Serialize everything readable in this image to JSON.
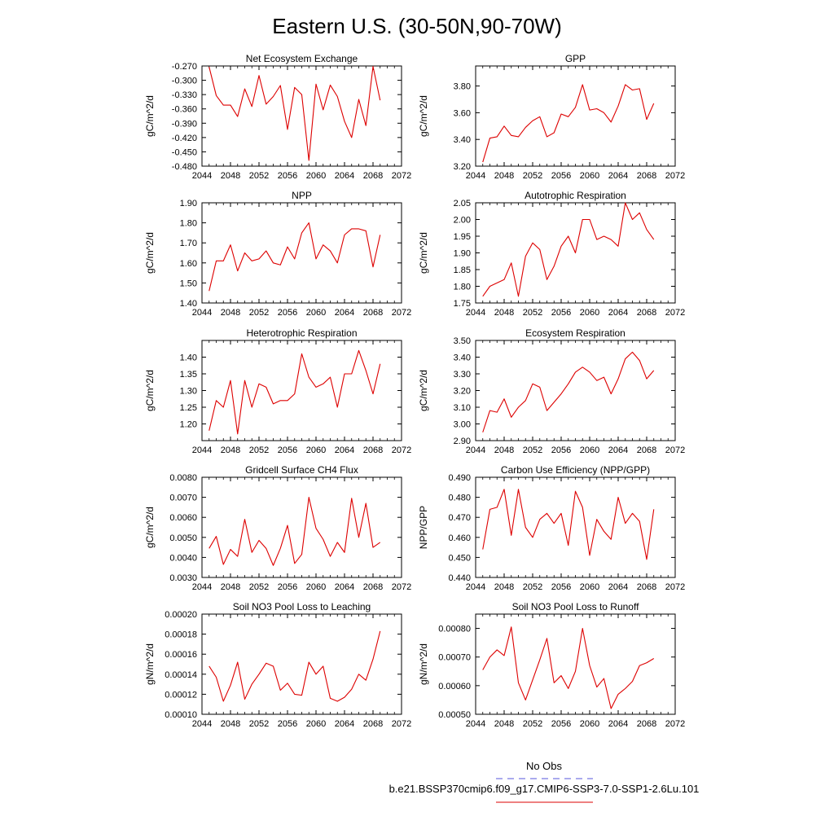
{
  "figure": {
    "title": "Eastern U.S. (30-50N,90-70W)",
    "legend": {
      "obs_label": "No Obs",
      "obs_color": "#5555dd",
      "case_label": "b.e21.BSSP370cmip6.f09_g17.CMIP6-SSP3-7.0-SSP1-2.6Lu.101",
      "case_color": "#dd0000"
    }
  },
  "chart_data": [
    {
      "type": "line",
      "title": "Net Ecosystem Exchange",
      "xlabel": "",
      "ylabel": "gC/m^2/d",
      "xlim": [
        2044,
        2072
      ],
      "xticks": [
        "2044",
        "2048",
        "2052",
        "2056",
        "2060",
        "2064",
        "2068",
        "2072"
      ],
      "ylim": [
        -0.48,
        -0.27
      ],
      "yticks": [
        "-0.270",
        "-0.300",
        "-0.330",
        "-0.360",
        "-0.390",
        "-0.420",
        "-0.450",
        "-0.480"
      ],
      "yticks_v": [
        -0.27,
        -0.3,
        -0.33,
        -0.36,
        -0.39,
        -0.42,
        -0.45,
        -0.48
      ],
      "x": [
        2045,
        2046,
        2047,
        2048,
        2049,
        2050,
        2051,
        2052,
        2053,
        2054,
        2055,
        2056,
        2057,
        2058,
        2059,
        2060,
        2061,
        2062,
        2063,
        2064,
        2065,
        2066,
        2067,
        2068,
        2069
      ],
      "series": [
        {
          "color": "#dd0000",
          "values": [
            -0.272,
            -0.332,
            -0.352,
            -0.352,
            -0.376,
            -0.318,
            -0.355,
            -0.29,
            -0.35,
            -0.334,
            -0.311,
            -0.403,
            -0.315,
            -0.33,
            -0.468,
            -0.308,
            -0.362,
            -0.31,
            -0.334,
            -0.386,
            -0.42,
            -0.34,
            -0.395,
            -0.271,
            -0.342
          ]
        }
      ]
    },
    {
      "type": "line",
      "title": "GPP",
      "xlabel": "",
      "ylabel": "gC/m^2/d",
      "xlim": [
        2044,
        2072
      ],
      "xticks": [
        "2044",
        "2048",
        "2052",
        "2056",
        "2060",
        "2064",
        "2068",
        "2072"
      ],
      "ylim": [
        3.2,
        3.95
      ],
      "yticks": [
        "3.20",
        "3.40",
        "3.60",
        "3.80"
      ],
      "yticks_v": [
        3.2,
        3.4,
        3.6,
        3.8
      ],
      "x": [
        2045,
        2046,
        2047,
        2048,
        2049,
        2050,
        2051,
        2052,
        2053,
        2054,
        2055,
        2056,
        2057,
        2058,
        2059,
        2060,
        2061,
        2062,
        2063,
        2064,
        2065,
        2066,
        2067,
        2068,
        2069
      ],
      "series": [
        {
          "color": "#dd0000",
          "values": [
            3.23,
            3.41,
            3.42,
            3.5,
            3.43,
            3.42,
            3.49,
            3.54,
            3.57,
            3.42,
            3.45,
            3.59,
            3.57,
            3.64,
            3.81,
            3.62,
            3.63,
            3.6,
            3.53,
            3.65,
            3.81,
            3.77,
            3.78,
            3.55,
            3.67
          ]
        }
      ]
    },
    {
      "type": "line",
      "title": "NPP",
      "xlabel": "",
      "ylabel": "gC/m^2/d",
      "xlim": [
        2044,
        2072
      ],
      "xticks": [
        "2044",
        "2048",
        "2052",
        "2056",
        "2060",
        "2064",
        "2068",
        "2072"
      ],
      "ylim": [
        1.4,
        1.9
      ],
      "yticks": [
        "1.40",
        "1.50",
        "1.60",
        "1.70",
        "1.80",
        "1.90"
      ],
      "yticks_v": [
        1.4,
        1.5,
        1.6,
        1.7,
        1.8,
        1.9
      ],
      "x": [
        2045,
        2046,
        2047,
        2048,
        2049,
        2050,
        2051,
        2052,
        2053,
        2054,
        2055,
        2056,
        2057,
        2058,
        2059,
        2060,
        2061,
        2062,
        2063,
        2064,
        2065,
        2066,
        2067,
        2068,
        2069
      ],
      "series": [
        {
          "color": "#dd0000",
          "values": [
            1.46,
            1.61,
            1.61,
            1.69,
            1.56,
            1.65,
            1.61,
            1.62,
            1.66,
            1.6,
            1.59,
            1.68,
            1.62,
            1.75,
            1.8,
            1.62,
            1.69,
            1.66,
            1.6,
            1.74,
            1.77,
            1.77,
            1.76,
            1.58,
            1.74
          ]
        }
      ]
    },
    {
      "type": "line",
      "title": "Autotrophic Respiration",
      "xlabel": "",
      "ylabel": "gC/m^2/d",
      "xlim": [
        2044,
        2072
      ],
      "xticks": [
        "2044",
        "2048",
        "2052",
        "2056",
        "2060",
        "2064",
        "2068",
        "2072"
      ],
      "ylim": [
        1.75,
        2.05
      ],
      "yticks": [
        "1.75",
        "1.80",
        "1.85",
        "1.90",
        "1.95",
        "2.00",
        "2.05"
      ],
      "yticks_v": [
        1.75,
        1.8,
        1.85,
        1.9,
        1.95,
        2.0,
        2.05
      ],
      "x": [
        2045,
        2046,
        2047,
        2048,
        2049,
        2050,
        2051,
        2052,
        2053,
        2054,
        2055,
        2056,
        2057,
        2058,
        2059,
        2060,
        2061,
        2062,
        2063,
        2064,
        2065,
        2066,
        2067,
        2068,
        2069
      ],
      "series": [
        {
          "color": "#dd0000",
          "values": [
            1.77,
            1.8,
            1.81,
            1.82,
            1.87,
            1.77,
            1.89,
            1.93,
            1.91,
            1.82,
            1.86,
            1.92,
            1.95,
            1.9,
            2.0,
            2.0,
            1.94,
            1.95,
            1.94,
            1.92,
            2.05,
            2.0,
            2.02,
            1.97,
            1.94
          ]
        }
      ]
    },
    {
      "type": "line",
      "title": "Heterotrophic Respiration",
      "xlabel": "",
      "ylabel": "gC/m^2/d",
      "xlim": [
        2044,
        2072
      ],
      "xticks": [
        "2044",
        "2048",
        "2052",
        "2056",
        "2060",
        "2064",
        "2068",
        "2072"
      ],
      "ylim": [
        1.15,
        1.45
      ],
      "yticks": [
        "1.20",
        "1.25",
        "1.30",
        "1.35",
        "1.40"
      ],
      "yticks_v": [
        1.2,
        1.25,
        1.3,
        1.35,
        1.4
      ],
      "x": [
        2045,
        2046,
        2047,
        2048,
        2049,
        2050,
        2051,
        2052,
        2053,
        2054,
        2055,
        2056,
        2057,
        2058,
        2059,
        2060,
        2061,
        2062,
        2063,
        2064,
        2065,
        2066,
        2067,
        2068,
        2069
      ],
      "series": [
        {
          "color": "#dd0000",
          "values": [
            1.18,
            1.27,
            1.25,
            1.33,
            1.17,
            1.33,
            1.25,
            1.32,
            1.31,
            1.26,
            1.27,
            1.27,
            1.29,
            1.41,
            1.34,
            1.31,
            1.32,
            1.34,
            1.25,
            1.35,
            1.35,
            1.42,
            1.36,
            1.29,
            1.38
          ]
        }
      ]
    },
    {
      "type": "line",
      "title": "Ecosystem Respiration",
      "xlabel": "",
      "ylabel": "gC/m^2/d",
      "xlim": [
        2044,
        2072
      ],
      "xticks": [
        "2044",
        "2048",
        "2052",
        "2056",
        "2060",
        "2064",
        "2068",
        "2072"
      ],
      "ylim": [
        2.9,
        3.5
      ],
      "yticks": [
        "2.90",
        "3.00",
        "3.10",
        "3.20",
        "3.30",
        "3.40",
        "3.50"
      ],
      "yticks_v": [
        2.9,
        3.0,
        3.1,
        3.2,
        3.3,
        3.4,
        3.5
      ],
      "x": [
        2045,
        2046,
        2047,
        2048,
        2049,
        2050,
        2051,
        2052,
        2053,
        2054,
        2055,
        2056,
        2057,
        2058,
        2059,
        2060,
        2061,
        2062,
        2063,
        2064,
        2065,
        2066,
        2067,
        2068,
        2069
      ],
      "series": [
        {
          "color": "#dd0000",
          "values": [
            2.95,
            3.08,
            3.07,
            3.15,
            3.04,
            3.1,
            3.14,
            3.24,
            3.22,
            3.08,
            3.13,
            3.18,
            3.24,
            3.31,
            3.34,
            3.31,
            3.26,
            3.28,
            3.18,
            3.27,
            3.39,
            3.43,
            3.38,
            3.27,
            3.32
          ]
        }
      ]
    },
    {
      "type": "line",
      "title": "Gridcell Surface CH4 Flux",
      "xlabel": "",
      "ylabel": "gC/m^2/d",
      "xlim": [
        2044,
        2072
      ],
      "xticks": [
        "2044",
        "2048",
        "2052",
        "2056",
        "2060",
        "2064",
        "2068",
        "2072"
      ],
      "ylim": [
        0.003,
        0.008
      ],
      "yticks": [
        "0.0030",
        "0.0040",
        "0.0050",
        "0.0060",
        "0.0070",
        "0.0080"
      ],
      "yticks_v": [
        0.003,
        0.004,
        0.005,
        0.006,
        0.007,
        0.008
      ],
      "x": [
        2045,
        2046,
        2047,
        2048,
        2049,
        2050,
        2051,
        2052,
        2053,
        2054,
        2055,
        2056,
        2057,
        2058,
        2059,
        2060,
        2061,
        2062,
        2063,
        2064,
        2065,
        2066,
        2067,
        2068,
        2069
      ],
      "series": [
        {
          "color": "#dd0000",
          "values": [
            0.00445,
            0.00505,
            0.00365,
            0.0044,
            0.00405,
            0.0059,
            0.00425,
            0.00485,
            0.00445,
            0.0036,
            0.00445,
            0.0056,
            0.0037,
            0.00415,
            0.007,
            0.00545,
            0.0049,
            0.00405,
            0.00475,
            0.00425,
            0.00695,
            0.005,
            0.0067,
            0.0045,
            0.00475
          ]
        }
      ]
    },
    {
      "type": "line",
      "title": "Carbon Use Efficiency (NPP/GPP)",
      "xlabel": "",
      "ylabel": "NPP/GPP",
      "xlim": [
        2044,
        2072
      ],
      "xticks": [
        "2044",
        "2048",
        "2052",
        "2056",
        "2060",
        "2064",
        "2068",
        "2072"
      ],
      "ylim": [
        0.44,
        0.49
      ],
      "yticks": [
        "0.440",
        "0.450",
        "0.460",
        "0.470",
        "0.480",
        "0.490"
      ],
      "yticks_v": [
        0.44,
        0.45,
        0.46,
        0.47,
        0.48,
        0.49
      ],
      "x": [
        2045,
        2046,
        2047,
        2048,
        2049,
        2050,
        2051,
        2052,
        2053,
        2054,
        2055,
        2056,
        2057,
        2058,
        2059,
        2060,
        2061,
        2062,
        2063,
        2064,
        2065,
        2066,
        2067,
        2068,
        2069
      ],
      "series": [
        {
          "color": "#dd0000",
          "values": [
            0.454,
            0.474,
            0.475,
            0.484,
            0.461,
            0.484,
            0.465,
            0.46,
            0.469,
            0.472,
            0.467,
            0.472,
            0.456,
            0.483,
            0.475,
            0.451,
            0.469,
            0.463,
            0.459,
            0.48,
            0.467,
            0.472,
            0.468,
            0.449,
            0.474
          ]
        }
      ]
    },
    {
      "type": "line",
      "title": "Soil NO3 Pool Loss to Leaching",
      "xlabel": "",
      "ylabel": "gN/m^2/d",
      "xlim": [
        2044,
        2072
      ],
      "xticks": [
        "2044",
        "2048",
        "2052",
        "2056",
        "2060",
        "2064",
        "2068",
        "2072"
      ],
      "ylim": [
        0.0001,
        0.0002
      ],
      "yticks": [
        "0.00010",
        "0.00012",
        "0.00014",
        "0.00016",
        "0.00018",
        "0.00020"
      ],
      "yticks_v": [
        0.0001,
        0.00012,
        0.00014,
        0.00016,
        0.00018,
        0.0002
      ],
      "x": [
        2045,
        2046,
        2047,
        2048,
        2049,
        2050,
        2051,
        2052,
        2053,
        2054,
        2055,
        2056,
        2057,
        2058,
        2059,
        2060,
        2061,
        2062,
        2063,
        2064,
        2065,
        2066,
        2067,
        2068,
        2069
      ],
      "series": [
        {
          "color": "#dd0000",
          "values": [
            0.000148,
            0.000137,
            0.000113,
            0.000129,
            0.000152,
            0.000115,
            0.00013,
            0.00014,
            0.000151,
            0.000148,
            0.000124,
            0.000131,
            0.00012,
            0.000119,
            0.000152,
            0.00014,
            0.000148,
            0.000116,
            0.000113,
            0.000117,
            0.000125,
            0.00014,
            0.000134,
            0.000155,
            0.000183
          ]
        }
      ]
    },
    {
      "type": "line",
      "title": "Soil NO3 Pool Loss to Runoff",
      "xlabel": "",
      "ylabel": "gN/m^2/d",
      "xlim": [
        2044,
        2072
      ],
      "xticks": [
        "2044",
        "2048",
        "2052",
        "2056",
        "2060",
        "2064",
        "2068",
        "2072"
      ],
      "ylim": [
        0.0005,
        0.00085
      ],
      "yticks": [
        "0.00050",
        "0.00060",
        "0.00070",
        "0.00080"
      ],
      "yticks_v": [
        0.0005,
        0.0006,
        0.0007,
        0.0008
      ],
      "x": [
        2045,
        2046,
        2047,
        2048,
        2049,
        2050,
        2051,
        2052,
        2053,
        2054,
        2055,
        2056,
        2057,
        2058,
        2059,
        2060,
        2061,
        2062,
        2063,
        2064,
        2065,
        2066,
        2067,
        2068,
        2069
      ],
      "series": [
        {
          "color": "#dd0000",
          "values": [
            0.000655,
            0.0007,
            0.000725,
            0.000705,
            0.000805,
            0.00061,
            0.00055,
            0.00062,
            0.00069,
            0.000765,
            0.00061,
            0.000635,
            0.00059,
            0.00065,
            0.0008,
            0.00067,
            0.000595,
            0.000625,
            0.00052,
            0.00057,
            0.00059,
            0.000615,
            0.00067,
            0.00068,
            0.000695
          ]
        }
      ]
    }
  ]
}
